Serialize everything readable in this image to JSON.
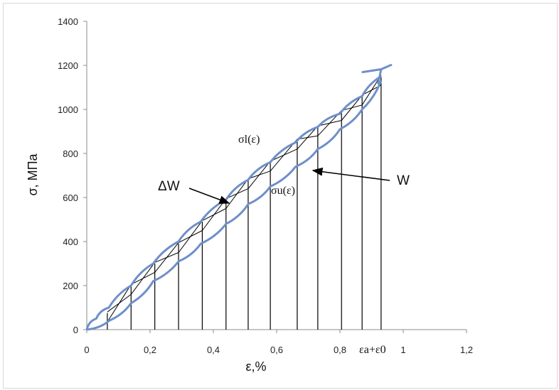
{
  "chart_data": {
    "type": "line",
    "xlabel": "ε,%",
    "ylabel": "σ, МПа",
    "xlim": [
      0,
      1.2
    ],
    "ylim": [
      0,
      1400
    ],
    "x_ticks": [
      "0",
      "0,2",
      "0,4",
      "0,6",
      "0,8",
      "1",
      "1,2"
    ],
    "y_ticks": [
      "0",
      "200",
      "400",
      "600",
      "800",
      "1000",
      "1200",
      "1400"
    ],
    "grid": false,
    "colors": {
      "curve": "#6f8fc9",
      "lines": "#000000",
      "axis": "#8c8c8c"
    },
    "loading_curve": {
      "x": [
        0,
        0.03,
        0.07,
        0.14,
        0.21,
        0.29,
        0.36,
        0.44,
        0.51,
        0.58,
        0.66,
        0.73,
        0.8,
        0.87,
        0.93
      ],
      "y": [
        0,
        50,
        100,
        200,
        300,
        400,
        490,
        590,
        680,
        760,
        850,
        920,
        980,
        1060,
        1150
      ]
    },
    "unloading_curve": {
      "x": [
        0,
        0.07,
        0.14,
        0.21,
        0.29,
        0.36,
        0.44,
        0.51,
        0.58,
        0.66,
        0.73,
        0.8,
        0.87,
        0.93
      ],
      "y": [
        0,
        40,
        120,
        220,
        310,
        390,
        480,
        570,
        650,
        740,
        820,
        910,
        1000,
        1130
      ]
    },
    "vertical_lines_x": [
      0.065,
      0.14,
      0.215,
      0.29,
      0.365,
      0.44,
      0.51,
      0.58,
      0.665,
      0.73,
      0.805,
      0.87,
      0.93
    ],
    "vertical_lines_top_y": [
      75,
      200,
      300,
      390,
      490,
      590,
      680,
      760,
      860,
      920,
      990,
      1060,
      1150
    ],
    "annotations": {
      "upper_curve": "σl(ε)",
      "lower_curve": "σu(ε)",
      "delta_w": "ΔW",
      "w": "W",
      "strain_amplitude": "εa+ε0"
    }
  }
}
